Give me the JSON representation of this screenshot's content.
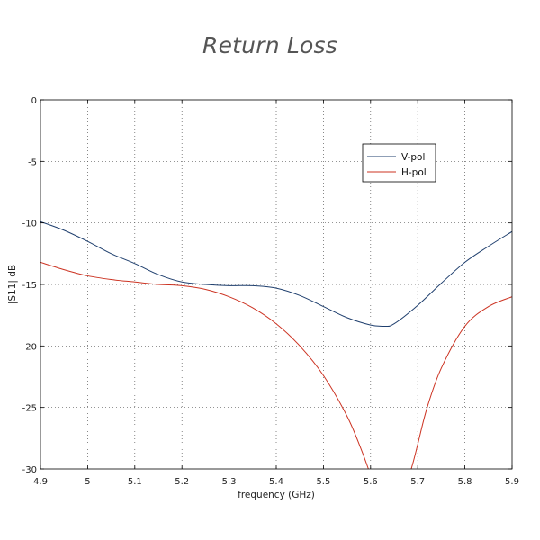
{
  "chart_data": {
    "type": "line",
    "title": "Return Loss",
    "xlabel": "frequency (GHz)",
    "ylabel": "|S11| dB",
    "xlim": [
      4.9,
      5.9
    ],
    "ylim": [
      -30,
      0
    ],
    "xticks": [
      4.9,
      5.0,
      5.1,
      5.2,
      5.3,
      5.4,
      5.5,
      5.6,
      5.7,
      5.8,
      5.9
    ],
    "xtick_labels": [
      "4.9",
      "5",
      "5.1",
      "5.2",
      "5.3",
      "5.4",
      "5.5",
      "5.6",
      "5.7",
      "5.8",
      "5.9"
    ],
    "yticks": [
      0,
      -5,
      -10,
      -15,
      -20,
      -25,
      -30
    ],
    "ytick_labels": [
      "0",
      "-5",
      "-10",
      "-15",
      "-20",
      "-25",
      "-30"
    ],
    "grid": true,
    "legend_position": "top-right",
    "series": [
      {
        "name": "V-pol",
        "color": "#1f3f6e",
        "x": [
          4.9,
          4.95,
          5.0,
          5.05,
          5.1,
          5.15,
          5.2,
          5.25,
          5.3,
          5.35,
          5.4,
          5.45,
          5.5,
          5.55,
          5.6,
          5.63,
          5.65,
          5.7,
          5.75,
          5.8,
          5.85,
          5.9
        ],
        "y": [
          -9.9,
          -10.6,
          -11.5,
          -12.5,
          -13.3,
          -14.2,
          -14.8,
          -15.0,
          -15.1,
          -15.1,
          -15.3,
          -15.9,
          -16.8,
          -17.7,
          -18.3,
          -18.4,
          -18.2,
          -16.7,
          -14.9,
          -13.2,
          -11.9,
          -10.7
        ]
      },
      {
        "name": "H-pol",
        "color": "#cc3322",
        "x": [
          4.9,
          4.95,
          5.0,
          5.05,
          5.1,
          5.15,
          5.2,
          5.25,
          5.3,
          5.35,
          5.4,
          5.45,
          5.5,
          5.55,
          5.58,
          5.6,
          5.61,
          null,
          5.68,
          5.69,
          5.7,
          5.72,
          5.75,
          5.8,
          5.85,
          5.9
        ],
        "y": [
          -13.2,
          -13.8,
          -14.3,
          -14.6,
          -14.8,
          -15.0,
          -15.1,
          -15.4,
          -16.0,
          -16.9,
          -18.2,
          -20.0,
          -22.4,
          -25.7,
          -28.4,
          -30.5,
          -31.5,
          null,
          -30.8,
          -29.5,
          -28.0,
          -25.0,
          -21.8,
          -18.4,
          -16.8,
          -16.0
        ]
      }
    ]
  }
}
